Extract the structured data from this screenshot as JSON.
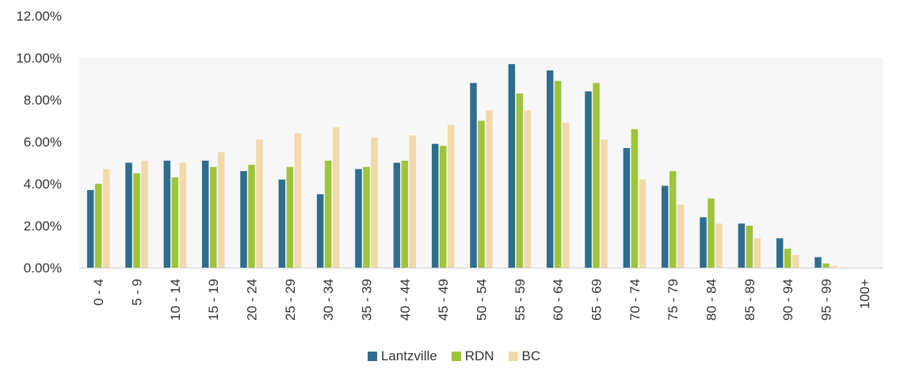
{
  "chart_data": {
    "type": "bar",
    "title": "",
    "xlabel": "",
    "ylabel": "",
    "ylim": [
      0,
      12
    ],
    "y_tick_values": [
      0,
      2,
      4,
      6,
      8,
      10,
      12
    ],
    "y_tick_labels": [
      "0.00%",
      "2.00%",
      "4.00%",
      "6.00%",
      "8.00%",
      "10.00%",
      "12.00%"
    ],
    "categories": [
      "0 - 4",
      "5 - 9",
      "10 - 14",
      "15 - 19",
      "20 - 24",
      "25 - 29",
      "30 - 34",
      "35 - 39",
      "40 - 44",
      "45 - 49",
      "50 - 54",
      "55 - 59",
      "60 - 64",
      "65 - 69",
      "70 - 74",
      "75 - 79",
      "80 - 84",
      "85 - 89",
      "90 - 94",
      "95 - 99",
      "100+"
    ],
    "series": [
      {
        "name": "Lantzville",
        "color": "#2e6e8c",
        "values": [
          3.7,
          5.0,
          5.1,
          5.1,
          4.6,
          4.2,
          3.5,
          4.7,
          5.0,
          5.9,
          8.8,
          9.7,
          9.4,
          8.4,
          5.7,
          3.9,
          2.4,
          2.1,
          1.4,
          0.5,
          0.0
        ]
      },
      {
        "name": "RDN",
        "color": "#9ec43a",
        "values": [
          4.0,
          4.5,
          4.3,
          4.8,
          4.9,
          4.8,
          5.1,
          4.8,
          5.1,
          5.8,
          7.0,
          8.3,
          8.9,
          8.8,
          6.6,
          4.6,
          3.3,
          2.0,
          0.9,
          0.2,
          0.0
        ]
      },
      {
        "name": "BC",
        "color": "#f1d9a9",
        "values": [
          4.7,
          5.1,
          5.0,
          5.5,
          6.1,
          6.4,
          6.7,
          6.2,
          6.3,
          6.8,
          7.5,
          7.5,
          6.9,
          6.1,
          4.2,
          3.0,
          2.1,
          1.4,
          0.6,
          0.1,
          0.0
        ]
      }
    ],
    "grid": false,
    "legend_position": "bottom"
  }
}
